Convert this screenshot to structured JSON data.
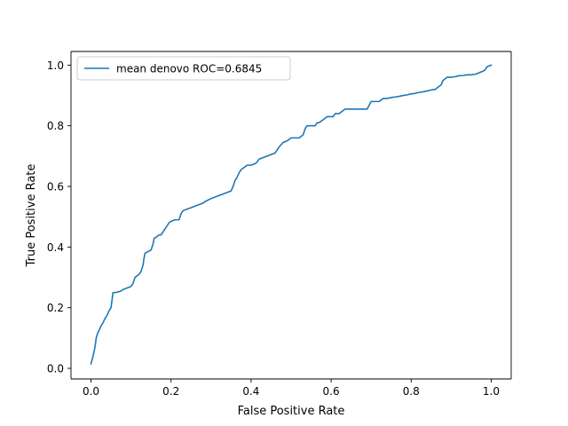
{
  "chart_data": {
    "type": "line",
    "xlabel": "False Positive Rate",
    "ylabel": "True Positive Rate",
    "xlim": [
      -0.05,
      1.05
    ],
    "ylim": [
      -0.035,
      1.045
    ],
    "xticks": [
      0.0,
      0.2,
      0.4,
      0.6,
      0.8,
      1.0
    ],
    "xtick_labels": [
      "0.0",
      "0.2",
      "0.4",
      "0.6",
      "0.8",
      "1.0"
    ],
    "yticks": [
      0.0,
      0.2,
      0.4,
      0.6,
      0.8,
      1.0
    ],
    "ytick_labels": [
      "0.0",
      "0.2",
      "0.4",
      "0.6",
      "0.8",
      "1.0"
    ],
    "grid": false,
    "legend_position": "upper-left",
    "series": [
      {
        "name": "mean denovo ROC=0.6845",
        "color": "#1f77b4",
        "x": [
          0.0,
          0.005,
          0.01,
          0.013,
          0.015,
          0.018,
          0.022,
          0.025,
          0.03,
          0.035,
          0.038,
          0.042,
          0.045,
          0.05,
          0.052,
          0.055,
          0.058,
          0.06,
          0.062,
          0.075,
          0.08,
          0.09,
          0.1,
          0.105,
          0.11,
          0.12,
          0.125,
          0.13,
          0.132,
          0.135,
          0.15,
          0.155,
          0.158,
          0.16,
          0.17,
          0.175,
          0.18,
          0.19,
          0.195,
          0.2,
          0.21,
          0.22,
          0.225,
          0.23,
          0.24,
          0.25,
          0.26,
          0.27,
          0.28,
          0.285,
          0.3,
          0.31,
          0.32,
          0.33,
          0.34,
          0.35,
          0.355,
          0.36,
          0.365,
          0.37,
          0.375,
          0.38,
          0.385,
          0.39,
          0.4,
          0.41,
          0.415,
          0.42,
          0.43,
          0.44,
          0.45,
          0.46,
          0.465,
          0.47,
          0.48,
          0.49,
          0.5,
          0.51,
          0.52,
          0.53,
          0.535,
          0.54,
          0.55,
          0.56,
          0.565,
          0.57,
          0.58,
          0.59,
          0.6,
          0.605,
          0.61,
          0.62,
          0.63,
          0.635,
          0.64,
          0.65,
          0.66,
          0.67,
          0.68,
          0.69,
          0.7,
          0.71,
          0.72,
          0.73,
          0.74,
          0.75,
          0.76,
          0.77,
          0.78,
          0.79,
          0.8,
          0.81,
          0.82,
          0.83,
          0.84,
          0.85,
          0.86,
          0.87,
          0.875,
          0.88,
          0.885,
          0.89,
          0.9,
          0.91,
          0.92,
          0.93,
          0.94,
          0.95,
          0.96,
          0.965,
          0.97,
          0.98,
          0.985,
          0.99,
          1.0
        ],
        "y": [
          0.015,
          0.04,
          0.07,
          0.1,
          0.11,
          0.12,
          0.13,
          0.14,
          0.15,
          0.165,
          0.17,
          0.18,
          0.19,
          0.2,
          0.22,
          0.25,
          0.25,
          0.25,
          0.25,
          0.255,
          0.26,
          0.265,
          0.27,
          0.28,
          0.3,
          0.31,
          0.32,
          0.34,
          0.36,
          0.38,
          0.39,
          0.41,
          0.43,
          0.43,
          0.44,
          0.44,
          0.45,
          0.47,
          0.48,
          0.485,
          0.49,
          0.49,
          0.51,
          0.52,
          0.525,
          0.53,
          0.535,
          0.54,
          0.545,
          0.55,
          0.56,
          0.565,
          0.57,
          0.575,
          0.58,
          0.585,
          0.6,
          0.62,
          0.63,
          0.645,
          0.655,
          0.66,
          0.665,
          0.67,
          0.67,
          0.675,
          0.68,
          0.69,
          0.695,
          0.7,
          0.705,
          0.71,
          0.72,
          0.73,
          0.745,
          0.75,
          0.76,
          0.76,
          0.76,
          0.77,
          0.79,
          0.8,
          0.8,
          0.8,
          0.81,
          0.81,
          0.82,
          0.83,
          0.83,
          0.83,
          0.84,
          0.84,
          0.85,
          0.855,
          0.855,
          0.855,
          0.855,
          0.855,
          0.855,
          0.855,
          0.88,
          0.88,
          0.88,
          0.89,
          0.89,
          0.893,
          0.895,
          0.897,
          0.9,
          0.902,
          0.905,
          0.907,
          0.91,
          0.912,
          0.915,
          0.918,
          0.92,
          0.93,
          0.935,
          0.95,
          0.955,
          0.96,
          0.96,
          0.962,
          0.965,
          0.966,
          0.968,
          0.968,
          0.97,
          0.972,
          0.975,
          0.98,
          0.985,
          0.995,
          1.0
        ]
      }
    ]
  }
}
